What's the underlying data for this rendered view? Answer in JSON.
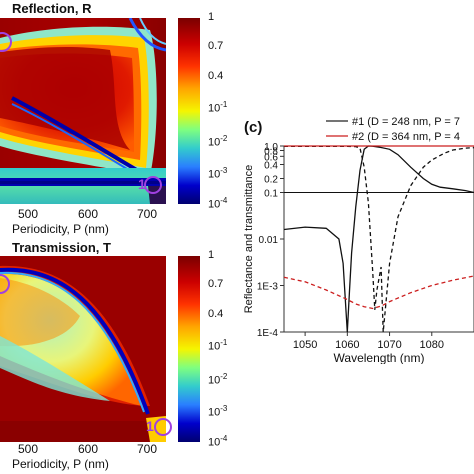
{
  "chart_data": [
    {
      "id": "reflection",
      "type": "heatmap",
      "title": "Reflection, R",
      "xlabel": "Periodicity, P (nm)",
      "x_ticks": [
        "500",
        "600",
        "700"
      ],
      "xlim": [
        450,
        730
      ],
      "colorbar": {
        "scale": "log",
        "ticks": [
          {
            "base": "1",
            "exp": ""
          },
          {
            "base": "0.7",
            "exp": ""
          },
          {
            "base": "0.4",
            "exp": ""
          },
          {
            "base": "10",
            "exp": "-1"
          },
          {
            "base": "10",
            "exp": "-2"
          },
          {
            "base": "10",
            "exp": "-3"
          },
          {
            "base": "10",
            "exp": "-4"
          }
        ],
        "colors": [
          "#8b0000",
          "#d40000",
          "#ff4400",
          "#ffaa00",
          "#f5f500",
          "#80ff80",
          "#33cccc",
          "#2a7fff",
          "#0000cc",
          "#000080"
        ]
      },
      "markers": [
        {
          "label": "",
          "x": 450
        },
        {
          "label": "1",
          "x": 720
        }
      ]
    },
    {
      "id": "transmission",
      "type": "heatmap",
      "title": "Transmission, T",
      "xlabel": "Periodicity, P (nm)",
      "x_ticks": [
        "500",
        "600",
        "700"
      ],
      "xlim": [
        450,
        730
      ],
      "colorbar": {
        "scale": "log",
        "ticks": [
          {
            "base": "1",
            "exp": ""
          },
          {
            "base": "0.7",
            "exp": ""
          },
          {
            "base": "0.4",
            "exp": ""
          },
          {
            "base": "10",
            "exp": "-1"
          },
          {
            "base": "10",
            "exp": "-2"
          },
          {
            "base": "10",
            "exp": "-3"
          },
          {
            "base": "10",
            "exp": "-4"
          }
        ]
      },
      "markers": [
        {
          "label": "",
          "x": 450
        },
        {
          "label": "1",
          "x": 720
        }
      ]
    },
    {
      "id": "spectra",
      "type": "line",
      "panel_label": "(c)",
      "xlabel": "Wavelength (nm)",
      "ylabel": "Reflectance and transmittance",
      "xlim": [
        1045,
        1090
      ],
      "ylim": [
        0.0001,
        1
      ],
      "yscale": "log",
      "x_ticks": [
        1050,
        1060,
        1070,
        1080
      ],
      "y_ticks": [
        "1.0",
        "0.8",
        "0.6",
        "0.4",
        "0.2",
        "0.1",
        "0.01",
        "1E-3",
        "1E-4"
      ],
      "legend": [
        {
          "label": "#1 (D = 248 nm, P = 7",
          "color": "#222222"
        },
        {
          "label": "#2 (D = 364 nm, P = 4",
          "color": "#cc1f1f"
        }
      ],
      "series": [
        {
          "name": "#1 (D = 248 nm, P = 7",
          "style": "solid",
          "color": "#111111",
          "x": [
            1045,
            1050,
            1055,
            1058,
            1059,
            1060,
            1060.5,
            1061,
            1062,
            1063,
            1064,
            1065,
            1066,
            1068,
            1070,
            1072,
            1075,
            1078,
            1080,
            1082,
            1085,
            1088,
            1090
          ],
          "y": [
            0.016,
            0.018,
            0.017,
            0.01,
            0.003,
            0.0001,
            0.0007,
            0.005,
            0.05,
            0.3,
            0.85,
            1.0,
            0.99,
            0.93,
            0.85,
            0.65,
            0.35,
            0.2,
            0.15,
            0.13,
            0.12,
            0.11,
            0.1
          ]
        },
        {
          "name": "#1 (D = 248 nm, P = 7",
          "style": "dashed",
          "color": "#111111",
          "x": [
            1045,
            1055,
            1060,
            1062,
            1063,
            1064,
            1065,
            1066,
            1066.5,
            1067,
            1068,
            1068.5,
            1069,
            1070,
            1072,
            1075,
            1078,
            1080,
            1083,
            1085,
            1088,
            1090
          ],
          "y": [
            0.98,
            0.98,
            0.98,
            0.97,
            0.9,
            0.35,
            0.06,
            0.002,
            0.0003,
            0.0008,
            0.0025,
            0.0001,
            0.0003,
            0.003,
            0.03,
            0.14,
            0.35,
            0.5,
            0.7,
            0.82,
            0.9,
            0.92
          ]
        },
        {
          "name": "#2 (D = 364 nm, P = 4",
          "style": "solid",
          "color": "#cc1f1f",
          "x": [
            1045,
            1060,
            1075,
            1090
          ],
          "y": [
            1.0,
            1.0,
            1.0,
            1.0
          ]
        },
        {
          "name": "#2 (D = 364 nm, P = 4",
          "style": "dashed",
          "color": "#cc1f1f",
          "x": [
            1045,
            1050,
            1055,
            1060,
            1062,
            1064,
            1066,
            1068,
            1070,
            1075,
            1080,
            1085,
            1090
          ],
          "y": [
            0.0015,
            0.0012,
            0.0008,
            0.0005,
            0.0004,
            0.00035,
            0.00032,
            0.00036,
            0.00045,
            0.0007,
            0.001,
            0.0013,
            0.0016
          ]
        }
      ],
      "reference_lines": [
        {
          "y": 1.0,
          "style": "dashed",
          "color": "#888888"
        },
        {
          "y": 0.1,
          "style": "solid",
          "color": "#111111"
        }
      ]
    }
  ]
}
